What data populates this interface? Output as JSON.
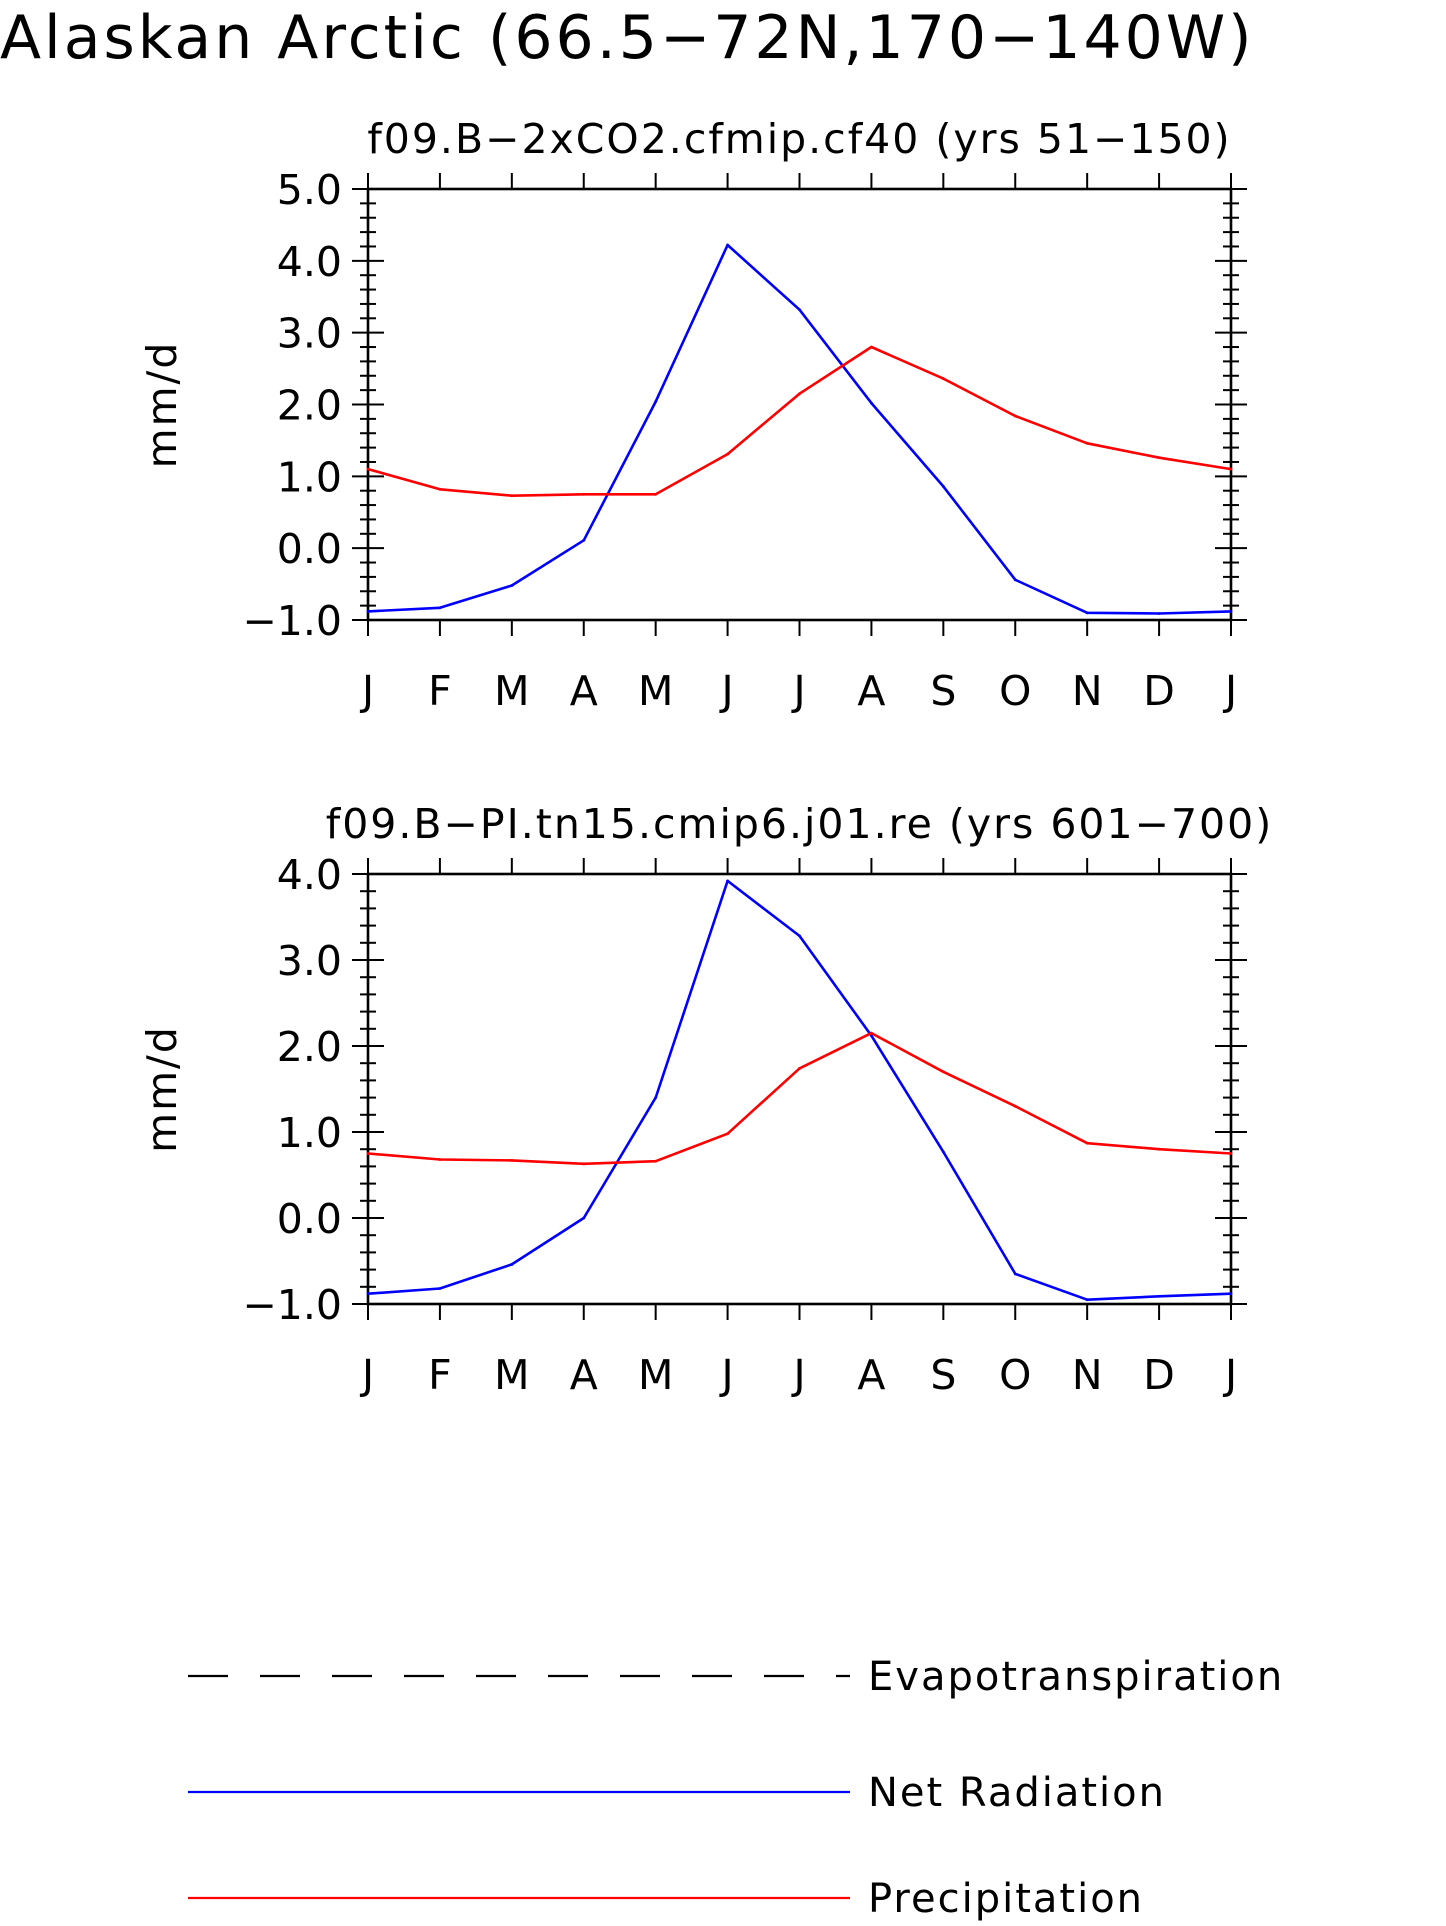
{
  "page_title": "Alaskan Arctic (66.5−72N,170−140W)",
  "colors": {
    "net_radiation": "#0000ff",
    "precipitation": "#ff0000",
    "evapotranspiration": "#000000",
    "axes": "#000000"
  },
  "legend": [
    {
      "name": "Evapotranspiration",
      "style": "dashed",
      "color": "#000000"
    },
    {
      "name": "Net Radiation",
      "style": "solid",
      "color": "#0000ff"
    },
    {
      "name": "Precipitation",
      "style": "solid",
      "color": "#ff0000"
    }
  ],
  "chart_data": [
    {
      "type": "line",
      "title": "f09.B−2xCO2.cfmip.cf40 (yrs 51−150)",
      "xlabel": "",
      "ylabel": "mm/d",
      "categories": [
        "J",
        "F",
        "M",
        "A",
        "M",
        "J",
        "J",
        "A",
        "S",
        "O",
        "N",
        "D",
        "J"
      ],
      "ylim": [
        -1.0,
        5.0
      ],
      "yticks": [
        "−1.0",
        "0.0",
        "1.0",
        "2.0",
        "3.0",
        "4.0",
        "5.0"
      ],
      "grid": false,
      "series": [
        {
          "name": "Net Radiation",
          "color": "#0000ff",
          "values": [
            -0.88,
            -0.83,
            -0.52,
            0.11,
            2.04,
            4.22,
            3.32,
            2.02,
            0.86,
            -0.44,
            -0.9,
            -0.91,
            -0.88
          ]
        },
        {
          "name": "Precipitation",
          "color": "#ff0000",
          "values": [
            1.1,
            0.82,
            0.73,
            0.75,
            0.75,
            1.31,
            2.15,
            2.8,
            2.36,
            1.84,
            1.46,
            1.26,
            1.1
          ]
        }
      ]
    },
    {
      "type": "line",
      "title": "f09.B−PI.tn15.cmip6.j01.re (yrs 601−700)",
      "xlabel": "",
      "ylabel": "mm/d",
      "categories": [
        "J",
        "F",
        "M",
        "A",
        "M",
        "J",
        "J",
        "A",
        "S",
        "O",
        "N",
        "D",
        "J"
      ],
      "ylim": [
        -1.0,
        4.0
      ],
      "yticks": [
        "−1.0",
        "0.0",
        "1.0",
        "2.0",
        "3.0",
        "4.0"
      ],
      "grid": false,
      "series": [
        {
          "name": "Net Radiation",
          "color": "#0000ff",
          "values": [
            -0.88,
            -0.82,
            -0.54,
            0.0,
            1.4,
            3.92,
            3.28,
            2.12,
            0.77,
            -0.65,
            -0.95,
            -0.91,
            -0.88
          ]
        },
        {
          "name": "Precipitation",
          "color": "#ff0000",
          "values": [
            0.75,
            0.68,
            0.67,
            0.63,
            0.66,
            0.98,
            1.74,
            2.15,
            1.7,
            1.3,
            0.87,
            0.8,
            0.75
          ]
        }
      ]
    }
  ]
}
